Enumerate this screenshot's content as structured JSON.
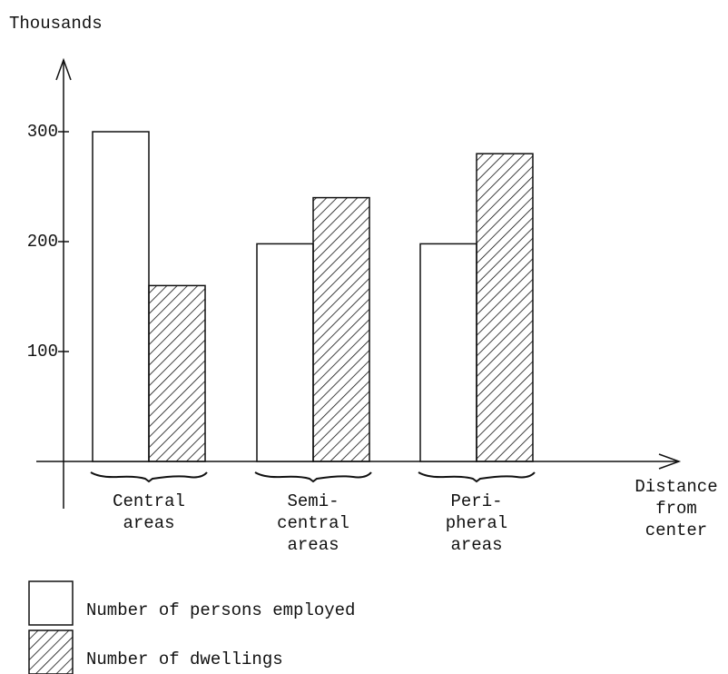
{
  "chart_data": {
    "type": "bar",
    "y_label": "Thousands",
    "x_label": "Distance\nfrom\ncenter",
    "categories": [
      "Central\nareas",
      "Semi-\ncentral\nareas",
      "Peri-\npheral\nareas"
    ],
    "series": [
      {
        "name": "Number of persons employed",
        "color": "#ffffff",
        "hatch": false,
        "values": [
          300,
          198,
          198
        ]
      },
      {
        "name": "Number of dwellings",
        "color": "#ffffff",
        "hatch": true,
        "values": [
          160,
          240,
          280
        ]
      }
    ],
    "ylim": [
      0,
      300
    ],
    "yticks": [
      100,
      200,
      300
    ]
  }
}
